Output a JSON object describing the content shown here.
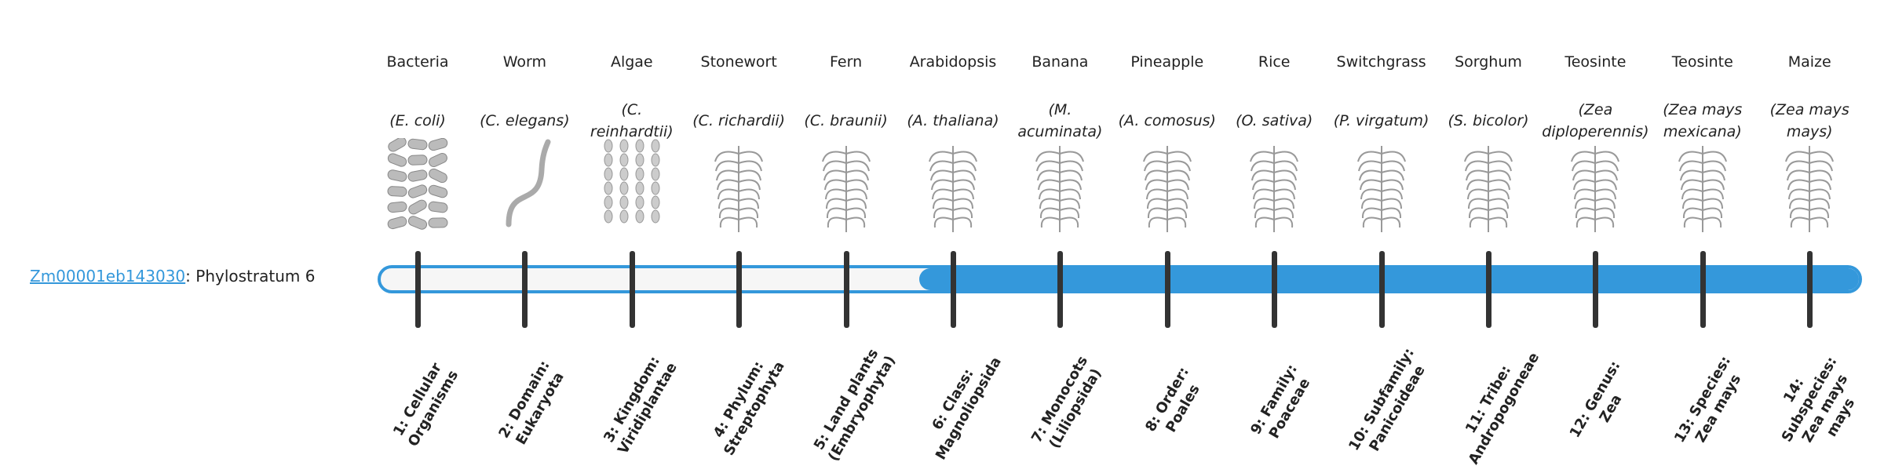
{
  "gene": {
    "id": "Zm00001eb143030",
    "suffix": ": Phylostratum 6"
  },
  "phylostratum": 6,
  "colors": {
    "accent": "#3498db",
    "tick": "#333333"
  },
  "strata": [
    {
      "common": "Bacteria",
      "scientific": "(E. coli)",
      "rank": "1: Cellular Organisms",
      "icon": "bacteria-icon"
    },
    {
      "common": "Worm",
      "scientific": "(C. elegans)",
      "rank": "2: Domain: Eukaryota",
      "icon": "worm-icon"
    },
    {
      "common": "Algae",
      "scientific": "(C. reinhardtii)",
      "rank": "3: Kingdom: Viridiplantae",
      "icon": "algae-icon"
    },
    {
      "common": "Stonewort",
      "scientific": "(C. richardii)",
      "rank": "4: Phylum: Streptophyta",
      "icon": "stonewort-icon"
    },
    {
      "common": "Fern",
      "scientific": "(C. braunii)",
      "rank": "5: Land plants (Embryophyta)",
      "icon": "fern-icon"
    },
    {
      "common": "Arabidopsis",
      "scientific": "(A. thaliana)",
      "rank": "6: Class: Magnoliopsida",
      "icon": "arabidopsis-icon"
    },
    {
      "common": "Banana",
      "scientific": "(M. acuminata)",
      "rank": "7: Monocots (Liliopsida)",
      "icon": "banana-icon"
    },
    {
      "common": "Pineapple",
      "scientific": "(A. comosus)",
      "rank": "8: Order: Poales",
      "icon": "pineapple-icon"
    },
    {
      "common": "Rice",
      "scientific": "(O. sativa)",
      "rank": "9: Family: Poaceae",
      "icon": "rice-icon"
    },
    {
      "common": "Switchgrass",
      "scientific": "(P. virgatum)",
      "rank": "10: Subfamily: Panicoideae",
      "icon": "switchgrass-icon"
    },
    {
      "common": "Sorghum",
      "scientific": "(S. bicolor)",
      "rank": "11: Tribe: Andropogoneae",
      "icon": "sorghum-icon"
    },
    {
      "common": "Teosinte",
      "scientific": "(Zea diploperennis)",
      "rank": "12: Genus: Zea",
      "icon": "teosinte-icon"
    },
    {
      "common": "Teosinte",
      "scientific": "(Zea mays mexicana)",
      "rank": "13: Species: Zea mays",
      "icon": "teosinte-mexicana-icon"
    },
    {
      "common": "Maize",
      "scientific": "(Zea mays mays)",
      "rank": "14: Subspecies: Zea mays mays",
      "icon": "maize-icon"
    }
  ]
}
